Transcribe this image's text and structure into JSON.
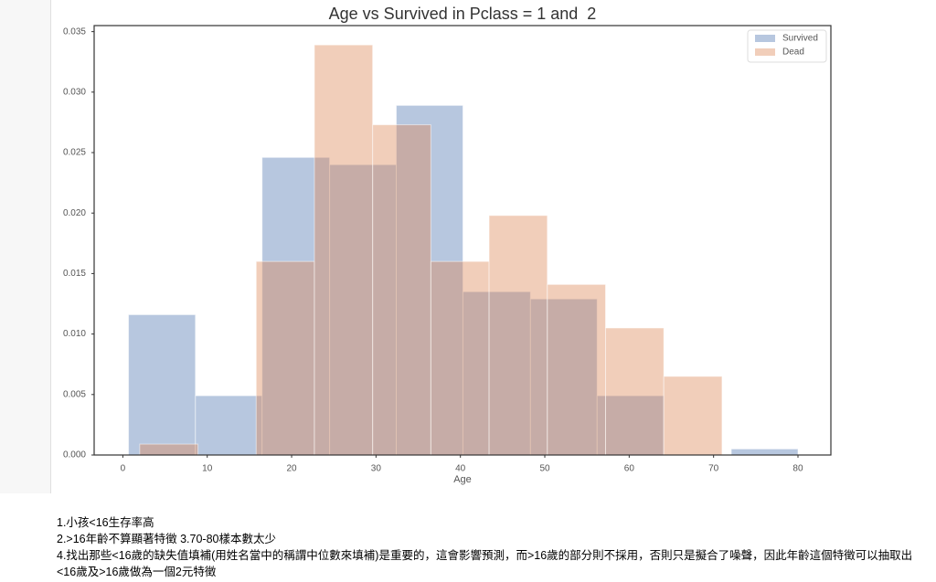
{
  "chart_data": {
    "type": "histogram",
    "title": "Age vs Survived in Pclass = 1 and  2",
    "x_label": "Age",
    "series": [
      {
        "name": "Survived",
        "color": "#4c72b0",
        "bins": [
          0.67,
          8.6,
          16.5,
          24.5,
          32.4,
          40.3,
          48.3,
          56.2,
          64.1,
          72.1,
          80
        ],
        "values": [
          0.0116,
          0.0049,
          0.0246,
          0.024,
          0.0289,
          0.0135,
          0.0129,
          0.0049,
          0,
          0.0005
        ]
      },
      {
        "name": "Dead",
        "color": "#dd8452",
        "bins": [
          2,
          8.9,
          15.8,
          22.7,
          29.6,
          36.5,
          43.4,
          50.3,
          57.2,
          64.1,
          71
        ],
        "values": [
          0.0009,
          0,
          0.016,
          0.0339,
          0.0273,
          0.016,
          0.0198,
          0.0141,
          0.0105,
          0.0065
        ]
      }
    ],
    "xlim": [
      -3.4,
      83.9
    ],
    "xticks": [
      0,
      10,
      20,
      30,
      40,
      50,
      60,
      70,
      80
    ],
    "ylim": [
      0,
      0.0355
    ],
    "yticks": [
      {
        "value": 0,
        "label": "0.000"
      },
      0.005,
      {
        "value": 0.01,
        "label": "0.010"
      },
      0.015,
      {
        "value": 0.02,
        "label": "0.020"
      },
      0.025,
      {
        "value": 0.03,
        "label": "0.030"
      },
      0.035
    ],
    "legend": "upper right",
    "opacity": 0.4
  },
  "notes": [
    "1.小孩<16生存率高",
    "2.>16年齡不算顯著特徵 3.70-80樣本數太少",
    "4.找出那些<16歲的缺失值填補(用姓名當中的稱謂中位數來填補)是重要的，這會影響預測，而>16歲的部分則不採用，否則只是擬合了噪聲，因此年齡這個特徵可以抽取出<16歲及>16歲做為一個2元特徵"
  ]
}
